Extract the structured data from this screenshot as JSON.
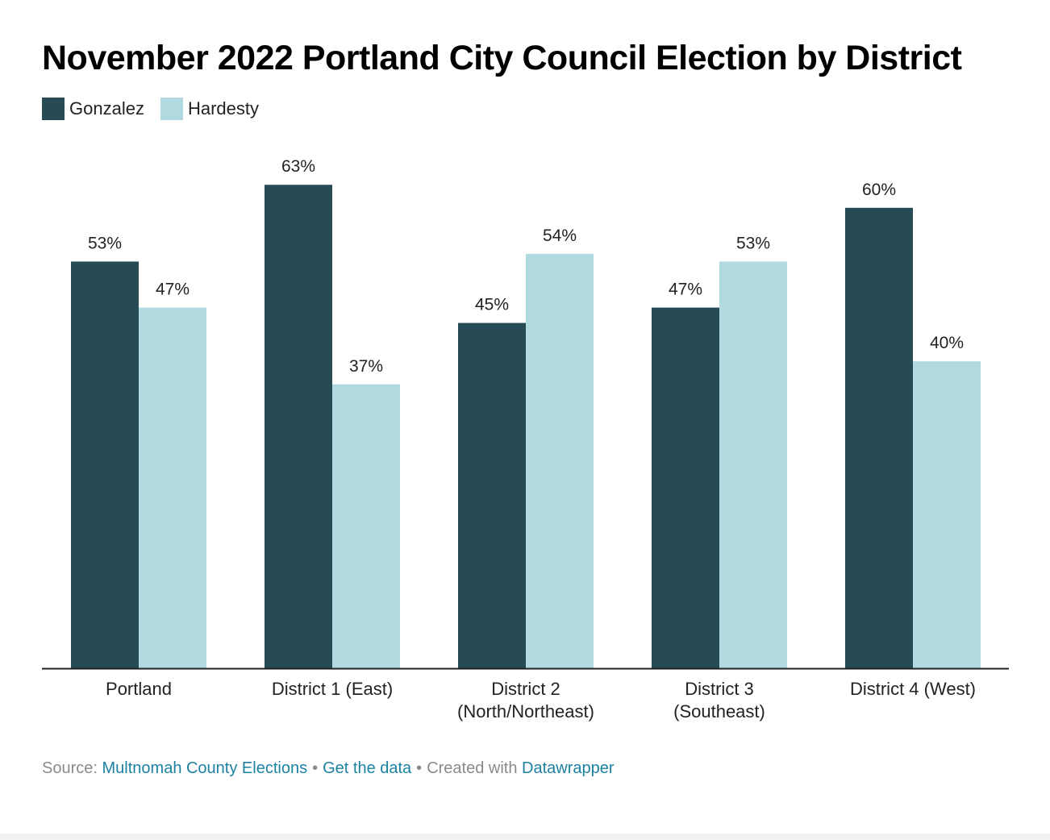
{
  "chart_data": {
    "type": "bar",
    "title": "November 2022 Portland City Council Election by District",
    "categories": [
      "Portland",
      "District 1 (East)",
      "District 2\n(North/Northeast)",
      "District 3\n(Southeast)",
      "District 4 (West)"
    ],
    "series": [
      {
        "name": "Gonzalez",
        "color": "#264b55",
        "values": [
          53,
          63,
          45,
          47,
          60
        ],
        "labels": [
          "53%",
          "63%",
          "45%",
          "47%",
          "60%"
        ]
      },
      {
        "name": "Hardesty",
        "color": "#b0dae0",
        "values": [
          47,
          37,
          54,
          53,
          40
        ],
        "labels": [
          "47%",
          "37%",
          "54%",
          "53%",
          "40%"
        ]
      }
    ],
    "ylim": [
      0,
      100
    ],
    "grid": false,
    "legend_position": "top-left",
    "xlabel": "",
    "ylabel": ""
  },
  "footer": {
    "source_prefix": "Source:",
    "source_link": "Multnomah County Elections",
    "get_data": "Get the data",
    "created_with": "Created with",
    "tool": "Datawrapper"
  }
}
